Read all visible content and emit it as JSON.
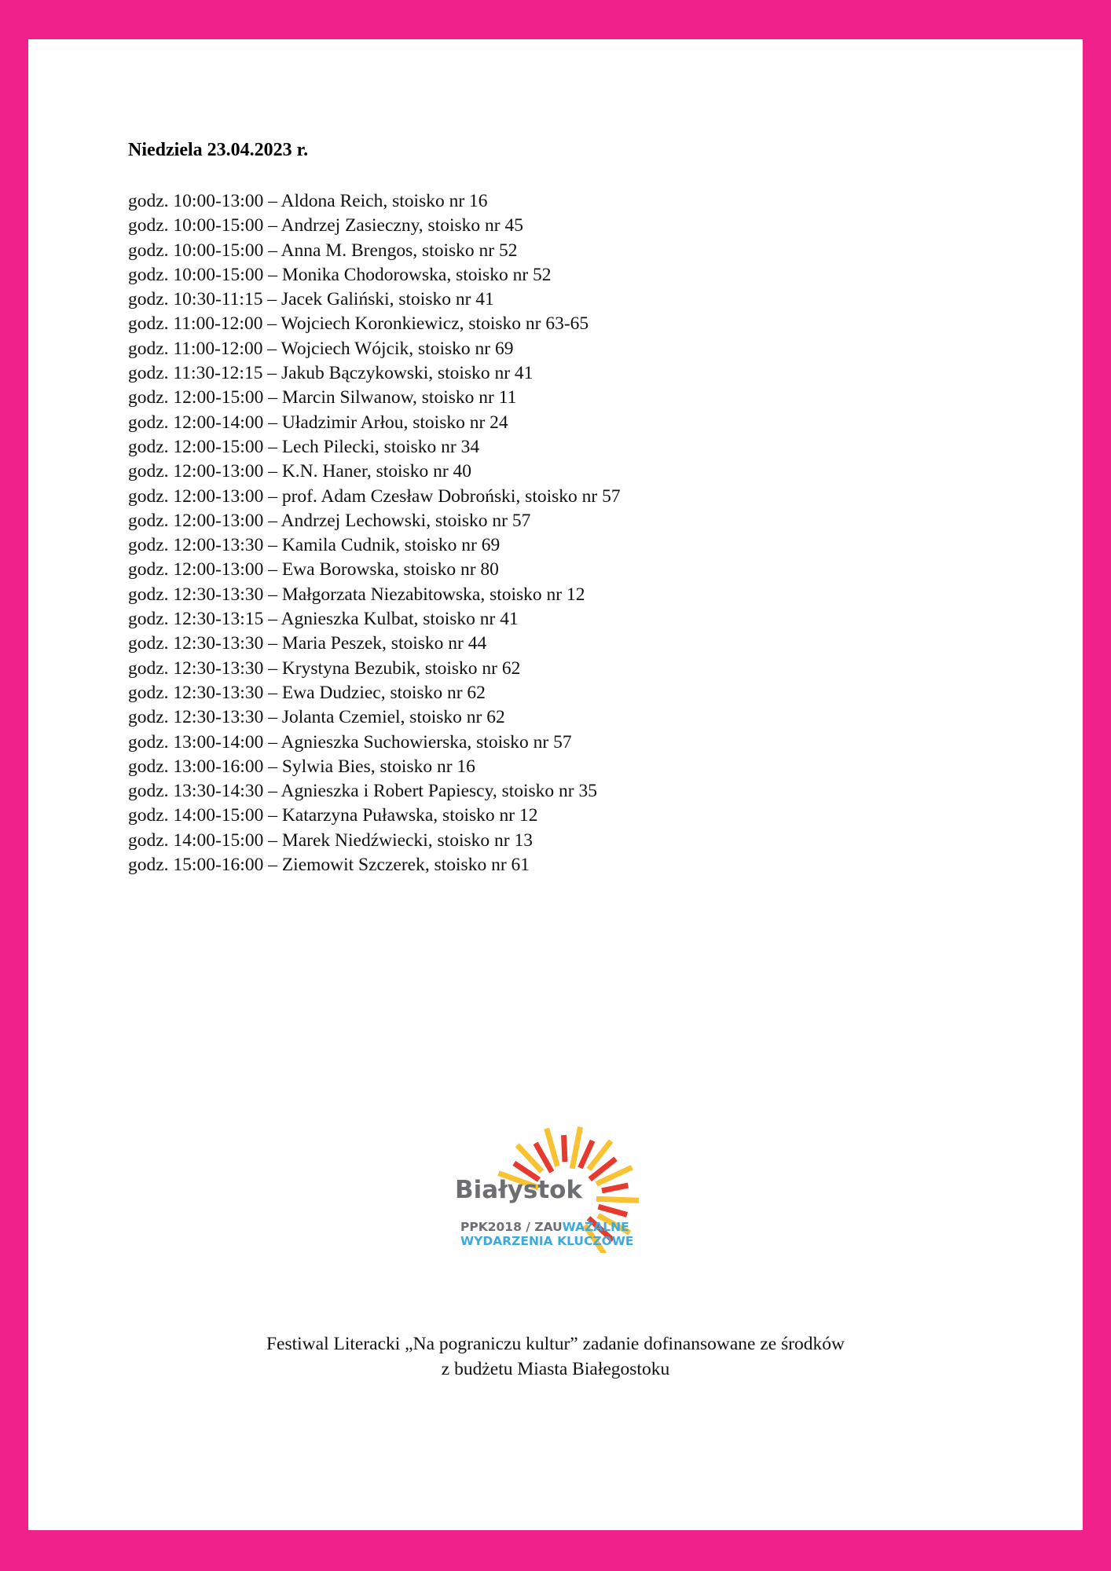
{
  "heading": "Niedziela 23.04.2023 r.",
  "events": [
    "godz. 10:00-13:00 – Aldona Reich, stoisko nr 16",
    "godz. 10:00-15:00 – Andrzej Zasieczny, stoisko nr 45",
    "godz. 10:00-15:00 – Anna M. Brengos, stoisko nr 52",
    "godz. 10:00-15:00 – Monika Chodorowska, stoisko nr 52",
    "godz. 10:30-11:15 – Jacek Galiński, stoisko nr 41",
    "godz. 11:00-12:00 – Wojciech Koronkiewicz, stoisko nr 63-65",
    "godz. 11:00-12:00 – Wojciech Wójcik, stoisko nr 69",
    "godz. 11:30-12:15 – Jakub Bączykowski, stoisko nr 41",
    "godz. 12:00-15:00 – Marcin Silwanow, stoisko nr 11",
    "godz. 12:00-14:00 – Uładzimir Arłou, stoisko nr 24",
    "godz. 12:00-15:00 – Lech Pilecki, stoisko nr 34",
    "godz. 12:00-13:00 – K.N. Haner, stoisko nr 40",
    "godz. 12:00-13:00 – prof. Adam Czesław Dobroński, stoisko nr 57",
    "godz. 12:00-13:00 – Andrzej Lechowski, stoisko nr 57",
    "godz. 12:00-13:30 – Kamila Cudnik, stoisko nr 69",
    "godz. 12:00-13:00 – Ewa Borowska, stoisko nr 80",
    "godz. 12:30-13:30 – Małgorzata Niezabitowska, stoisko nr 12",
    "godz. 12:30-13:15 – Agnieszka Kulbat, stoisko nr 41",
    "godz. 12:30-13:30 – Maria Peszek, stoisko nr 44",
    "godz. 12:30-13:30 – Krystyna Bezubik, stoisko nr 62",
    "godz. 12:30-13:30 – Ewa Dudziec, stoisko nr 62",
    "godz. 12:30-13:30 – Jolanta Czemiel, stoisko nr 62",
    "godz. 13:00-14:00 – Agnieszka Suchowierska, stoisko nr 57",
    "godz. 13:00-16:00 – Sylwia Bies, stoisko nr 16",
    "godz. 13:30-14:30 – Agnieszka i Robert Papiescy, stoisko nr 35",
    "godz. 14:00-15:00 – Katarzyna Puławska, stoisko nr 12",
    "godz. 14:00-15:00 – Marek Niedźwiecki, stoisko nr 13",
    "godz. 15:00-16:00 – Ziemowit Szczerek, stoisko nr 61"
  ],
  "logo": {
    "city": "Białystok",
    "line1_gray": "PPK2018 / ZAU",
    "line1_blue": "WAŻALNE",
    "line2": "WYDARZENIA KLUCZOWE",
    "colors": {
      "gray": "#6d6e71",
      "blue": "#3fa9dc",
      "red": "#e63a2e",
      "yellow": "#f9c232"
    }
  },
  "footer": {
    "line1": "Festiwal Literacki „Na pograniczu kultur” zadanie dofinansowane ze środków",
    "line2": "z budżetu Miasta Białegostoku"
  },
  "colors": {
    "border": "#f0218b"
  }
}
